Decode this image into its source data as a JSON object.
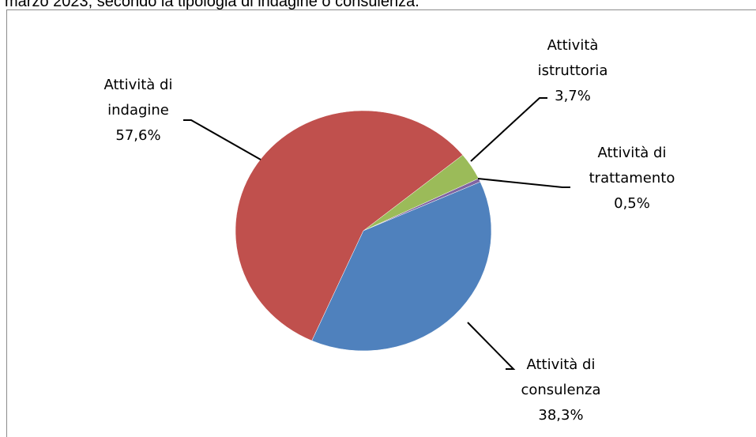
{
  "chart_data": {
    "type": "pie",
    "title": "marzo 2023, secondo la tipologia di indagine o consulenza.",
    "categories": [
      "Attività di consulenza",
      "Attività di indagine",
      "Attività istruttoria",
      "Attività di trattamento"
    ],
    "values": [
      38.3,
      57.6,
      3.7,
      0.5
    ],
    "value_labels": [
      "38,3%",
      "57,6%",
      "3,7%",
      "0,5%"
    ],
    "colors": [
      "#4f81bd",
      "#c0504d",
      "#9bbb59",
      "#8064a2"
    ]
  }
}
